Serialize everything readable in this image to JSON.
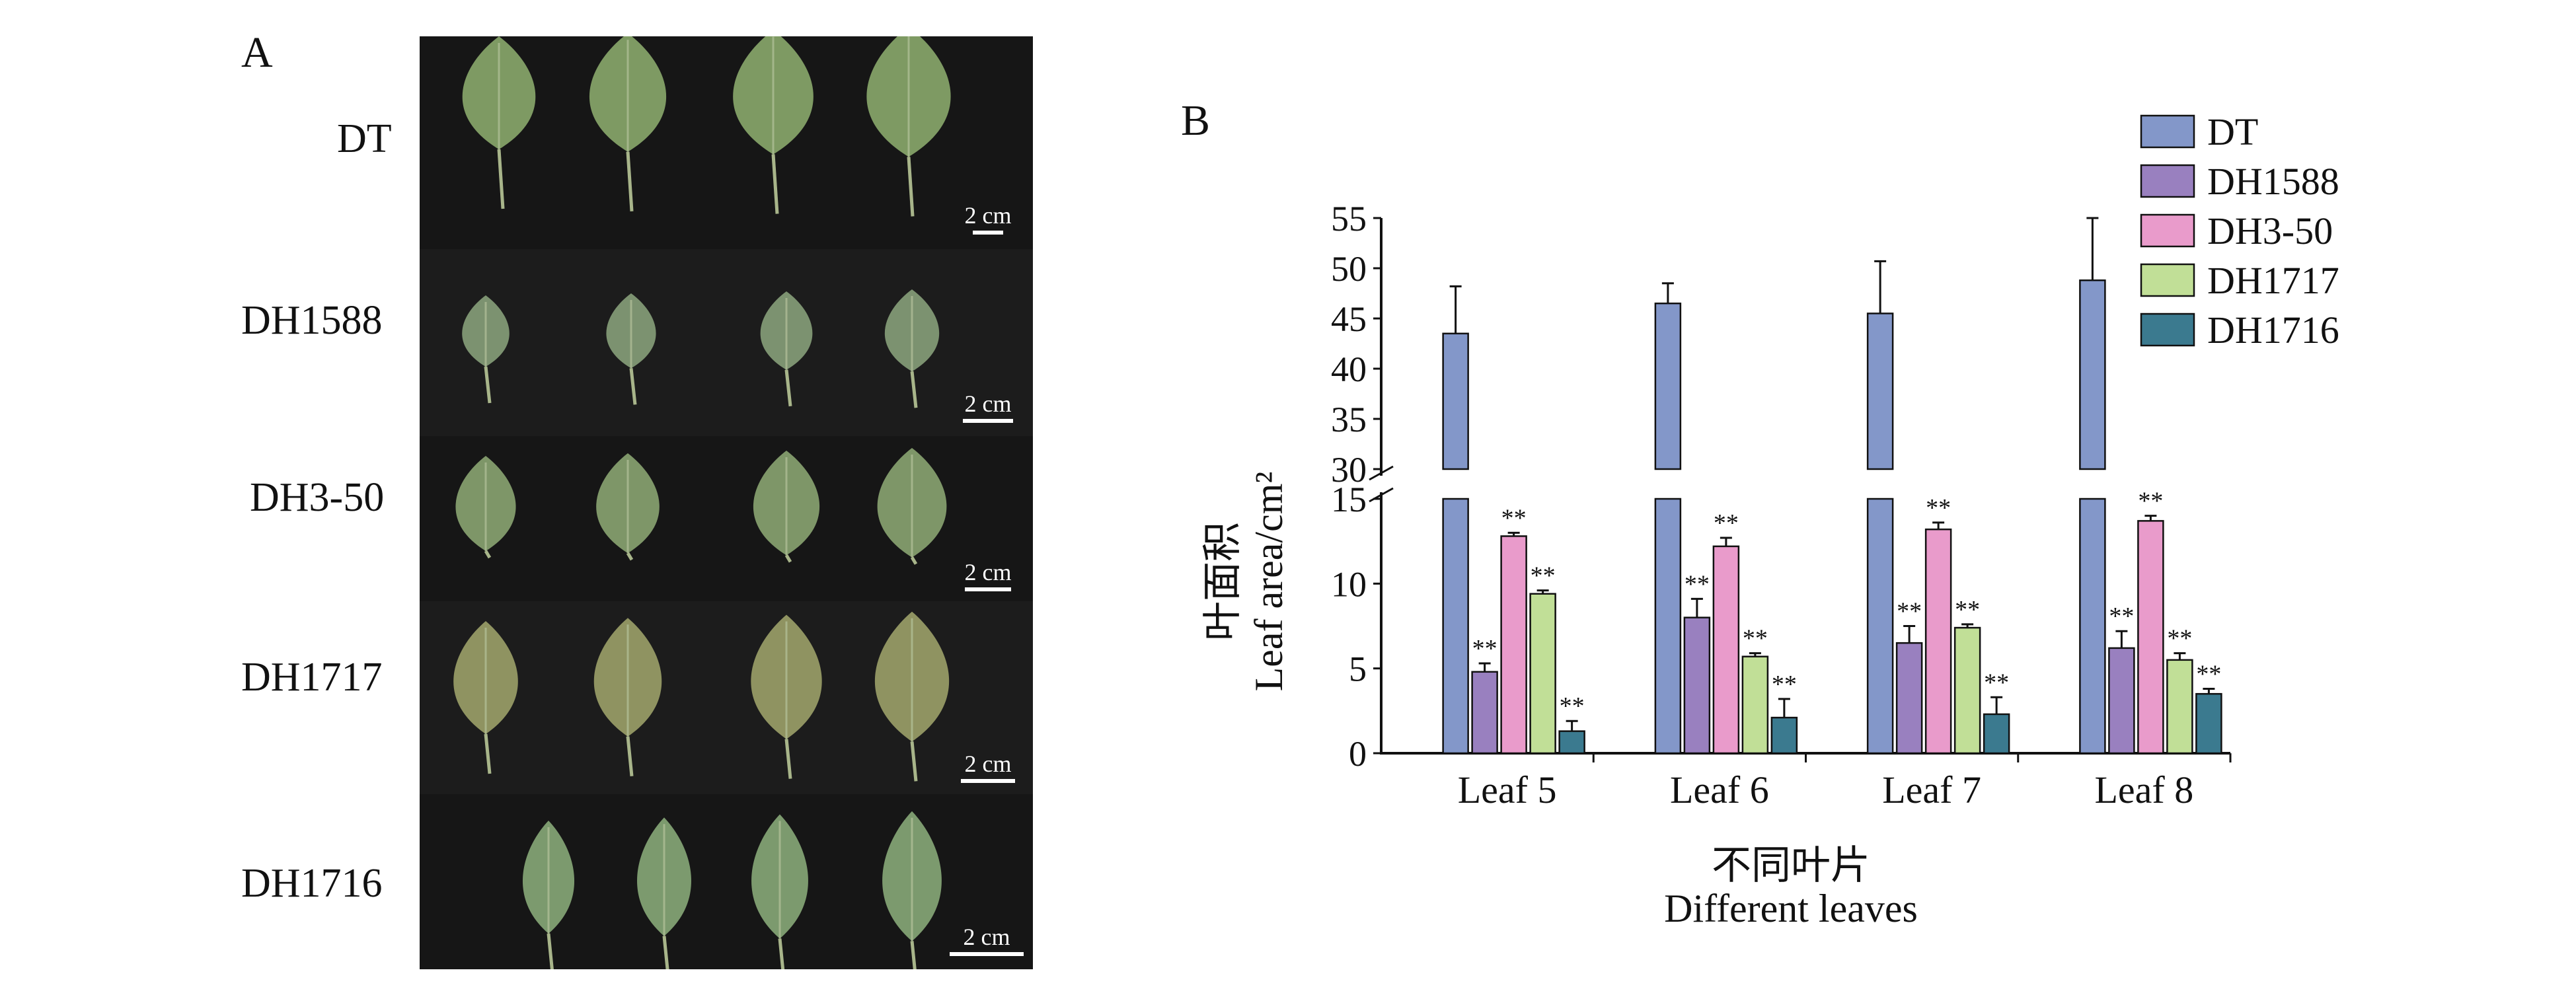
{
  "panel_a": {
    "label": "A",
    "rows": [
      {
        "label": "DT",
        "scale": "2 cm",
        "leaf_color": "#7e9a63"
      },
      {
        "label": "DH1588",
        "scale": "2 cm",
        "leaf_color": "#7c9270"
      },
      {
        "label": "DH3-50",
        "scale": "2 cm",
        "leaf_color": "#7e9668"
      },
      {
        "label": "DH1717",
        "scale": "2 cm",
        "leaf_color": "#8f9361"
      },
      {
        "label": "DH1716",
        "scale": "2 cm",
        "leaf_color": "#7c9a6e"
      }
    ]
  },
  "panel_b": {
    "label": "B"
  },
  "chart_data": {
    "type": "bar",
    "categories": [
      "Leaf 5",
      "Leaf 6",
      "Leaf 7",
      "Leaf 8"
    ],
    "xlabel_cn": "不同叶片",
    "xlabel": "Different leaves",
    "ylabel_cn": "叶面积",
    "ylabel": "Leaf area/cm²",
    "y_axis_broken": true,
    "y_break": [
      15,
      30
    ],
    "y_ticks_lower": [
      0,
      5,
      10,
      15
    ],
    "y_ticks_upper": [
      30,
      35,
      40,
      45,
      50,
      55
    ],
    "ylim": [
      0,
      55
    ],
    "legend_position": "top-right",
    "significance_mark": "**",
    "series": [
      {
        "name": "DT",
        "color": "#8397c9",
        "values": [
          43.5,
          46.5,
          45.5,
          48.8
        ],
        "errors": [
          4.7,
          2.0,
          5.2,
          6.2
        ],
        "significance": [
          false,
          false,
          false,
          false
        ]
      },
      {
        "name": "DH1588",
        "color": "#9980bf",
        "values": [
          4.8,
          8.0,
          6.5,
          6.2
        ],
        "errors": [
          0.5,
          1.1,
          1.0,
          1.0
        ],
        "significance": [
          true,
          true,
          true,
          true
        ]
      },
      {
        "name": "DH3-50",
        "color": "#e99bcb",
        "values": [
          12.8,
          12.2,
          13.2,
          13.7
        ],
        "errors": [
          0.2,
          0.5,
          0.4,
          0.3
        ],
        "significance": [
          true,
          true,
          true,
          true
        ]
      },
      {
        "name": "DH1717",
        "color": "#c1df97",
        "values": [
          9.4,
          5.7,
          7.4,
          5.5
        ],
        "errors": [
          0.2,
          0.2,
          0.2,
          0.4
        ],
        "significance": [
          true,
          true,
          true,
          true
        ]
      },
      {
        "name": "DH1716",
        "color": "#3b7a8f",
        "values": [
          1.3,
          2.1,
          2.3,
          3.5
        ],
        "errors": [
          0.6,
          1.1,
          1.0,
          0.3
        ],
        "significance": [
          true,
          true,
          true,
          true
        ]
      }
    ]
  }
}
